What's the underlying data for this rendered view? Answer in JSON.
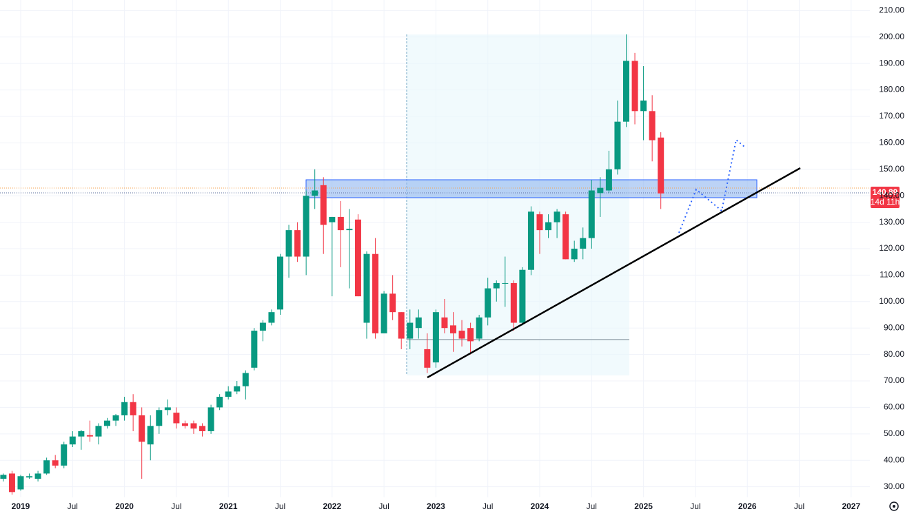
{
  "chart_data": {
    "type": "candlestick",
    "categories": [
      null,
      null,
      "2019",
      null,
      null,
      null,
      null,
      null,
      "Jul",
      null,
      null,
      null,
      null,
      null,
      "2020",
      null,
      null,
      null,
      null,
      null,
      "Jul",
      null,
      null,
      null,
      null,
      null,
      "2021",
      null,
      null,
      null,
      null,
      null,
      "Jul",
      null,
      null,
      null,
      null,
      null,
      "2022",
      null,
      null,
      null,
      null,
      null,
      "Jul",
      null,
      null,
      null,
      null,
      null,
      "2023",
      null,
      null,
      null,
      null,
      null,
      "Jul",
      null,
      null,
      null,
      null,
      null,
      "2024",
      null,
      null,
      null,
      null,
      null,
      "Jul",
      null,
      null,
      null,
      null,
      null,
      "2025",
      null,
      null,
      null,
      null,
      null,
      "Jul",
      null,
      null,
      null,
      null,
      null,
      "2026",
      null,
      null,
      null,
      null,
      null,
      "Jul",
      null,
      null,
      null,
      null,
      null,
      "2027"
    ],
    "open": [
      33,
      35,
      29,
      33.5,
      33,
      35,
      40,
      38,
      46,
      49,
      49.5,
      49,
      53,
      55,
      57,
      62,
      57,
      46,
      53,
      59,
      58,
      54,
      54,
      53,
      51,
      60,
      64,
      66,
      68,
      75,
      89,
      92,
      97,
      117,
      127,
      117,
      140,
      144,
      130,
      132,
      127,
      131,
      92,
      118,
      88,
      103,
      96,
      86,
      90,
      82,
      77,
      94,
      91,
      89,
      90,
      86,
      94,
      105,
      107,
      107,
      92,
      112,
      133,
      127,
      130,
      133,
      116,
      120,
      124,
      141,
      142,
      150,
      168,
      191,
      172,
      172,
      162,
      null,
      null,
      null,
      null,
      null,
      null,
      null,
      null,
      null,
      null,
      null,
      null,
      null,
      null,
      null,
      null,
      null,
      null,
      null,
      null,
      null,
      null
    ],
    "high": [
      35,
      36,
      34.5,
      35,
      36,
      41,
      42,
      47,
      51,
      51.5,
      55,
      54,
      56,
      57.5,
      64,
      65,
      60,
      57,
      60,
      63,
      60,
      55,
      55,
      54,
      61,
      65,
      68,
      70,
      74,
      90,
      93,
      97,
      118,
      129,
      130,
      142,
      150,
      147,
      132,
      138,
      135,
      133,
      119,
      124,
      104,
      110,
      96,
      97,
      97,
      88,
      97,
      101,
      96,
      93,
      92,
      95,
      109,
      108,
      117,
      108,
      113,
      136,
      134,
      133,
      135,
      134,
      123,
      128,
      146,
      147,
      157,
      176,
      201,
      194,
      189,
      178,
      164,
      null,
      null,
      null,
      null,
      null,
      null,
      null,
      null,
      null,
      null,
      null,
      null,
      null,
      null,
      null,
      null,
      null,
      null,
      null,
      null,
      null,
      null
    ],
    "low": [
      32,
      27,
      28.5,
      33,
      32,
      34.5,
      37,
      37,
      45,
      44,
      47,
      46,
      52,
      53,
      55,
      51,
      33,
      40,
      50,
      57,
      52,
      52,
      50,
      49,
      50,
      59,
      63,
      65,
      63,
      74,
      85,
      91,
      95,
      109,
      115,
      110,
      135,
      118,
      102,
      113,
      105,
      102,
      86,
      86,
      88,
      93,
      82,
      82,
      86,
      73,
      75,
      88,
      81,
      83,
      80,
      85,
      91,
      100,
      98,
      89,
      91,
      110,
      118,
      124,
      124,
      116,
      115,
      116,
      120,
      132,
      141,
      148,
      166,
      167,
      161,
      153,
      135,
      null,
      null,
      null,
      null,
      null,
      null,
      null,
      null,
      null,
      null,
      null,
      null,
      null,
      null,
      null,
      null,
      null,
      null,
      null,
      null,
      null,
      null
    ],
    "close": [
      34.5,
      28,
      34,
      34,
      35,
      40,
      38,
      46,
      49,
      51,
      49,
      53,
      55,
      57,
      62,
      57,
      47,
      53,
      59,
      60,
      54,
      53,
      52,
      51,
      60,
      64,
      66,
      68,
      73,
      89,
      92,
      96,
      117,
      127,
      117,
      140,
      142,
      129,
      132,
      127,
      127.5,
      102,
      118,
      88,
      103,
      96,
      86,
      92,
      94,
      75,
      96,
      90,
      88,
      86,
      85,
      94,
      105,
      107,
      107,
      92,
      112,
      134,
      127,
      130,
      134,
      116,
      120,
      124,
      142,
      143,
      150,
      168,
      191,
      172,
      176,
      161,
      140.89,
      null,
      null,
      null,
      null,
      null,
      null,
      null,
      null,
      null,
      null,
      null,
      null,
      null,
      null,
      null,
      null,
      null,
      null,
      null,
      null,
      null,
      null
    ],
    "up_color": "#089981",
    "down_color": "#f23645",
    "ylim": [
      26,
      214
    ],
    "yticks": [
      {
        "value": 30,
        "label": "30.00"
      },
      {
        "value": 40,
        "label": "40.00"
      },
      {
        "value": 50,
        "label": "50.00"
      },
      {
        "value": 60,
        "label": "60.00"
      },
      {
        "value": 70,
        "label": "70.00"
      },
      {
        "value": 80,
        "label": "80.00"
      },
      {
        "value": 90,
        "label": "90.00"
      },
      {
        "value": 100,
        "label": "100.00"
      },
      {
        "value": 110,
        "label": "110.00"
      },
      {
        "value": 120,
        "label": "120.00"
      },
      {
        "value": 130,
        "label": "130.00"
      },
      {
        "value": 140,
        "label": "140.00"
      },
      {
        "value": 150,
        "label": "150.00"
      },
      {
        "value": 160,
        "label": "160.00"
      },
      {
        "value": 170,
        "label": "170.00"
      },
      {
        "value": 180,
        "label": "180.00"
      },
      {
        "value": 190,
        "label": "190.00"
      },
      {
        "value": 200,
        "label": "200.00"
      },
      {
        "value": 210,
        "label": "210.00"
      }
    ],
    "grid": true,
    "countdown": "14d 11h"
  }
}
